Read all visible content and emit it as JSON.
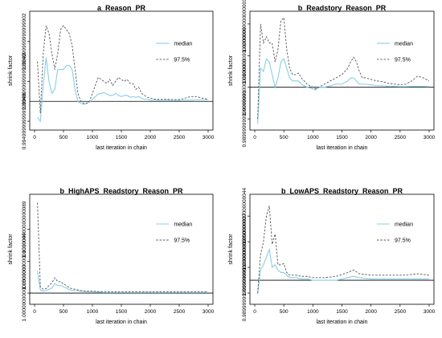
{
  "chart_data": [
    {
      "type": "line",
      "title": "a_Reason_PR",
      "xlabel": "last iteration in chain",
      "ylabel": "shrink factor",
      "xlim": [
        0,
        3000
      ],
      "ylim": [
        0.994,
        1.021
      ],
      "xticks": [
        0,
        500,
        1000,
        1500,
        2000,
        2500,
        3000
      ],
      "yticks": [
        0.995,
        1.005,
        1.015
      ],
      "reference_line": 1.0,
      "legend_position": "top-right",
      "series": [
        {
          "name": "median",
          "color": "#87CEEB",
          "dash": "solid",
          "x": [
            50,
            100,
            150,
            200,
            250,
            300,
            350,
            400,
            450,
            500,
            550,
            600,
            650,
            700,
            750,
            800,
            850,
            900,
            950,
            1000,
            1050,
            1100,
            1150,
            1200,
            1250,
            1300,
            1350,
            1400,
            1450,
            1500,
            1550,
            1600,
            1650,
            1700,
            1750,
            1800,
            1850,
            1900,
            1950,
            2000,
            2100,
            2200,
            2300,
            2400,
            2500,
            2600,
            2700,
            2800,
            2900,
            3000
          ],
          "values": [
            0.996,
            0.995,
            1.004,
            1.011,
            1.005,
            1.002,
            1.003,
            1.008,
            1.008,
            1.008,
            1.009,
            1.009,
            1.008,
            1.003,
            1.0,
            0.9995,
            0.9992,
            0.9995,
            0.9998,
            1.0005,
            1.0012,
            1.0018,
            1.002,
            1.0022,
            1.0018,
            1.0015,
            1.0015,
            1.002,
            1.0015,
            1.0012,
            1.0015,
            1.0015,
            1.001,
            1.0012,
            1.001,
            1.0012,
            1.0008,
            1.0005,
            1.0005,
            1.0003,
            1.0003,
            1.0002,
            1.0003,
            1.0002,
            1.0002,
            1.0003,
            1.0003,
            1.0004,
            1.0004,
            1.0004
          ]
        },
        {
          "name": "97.5%",
          "color": "#555555",
          "dash": "dashed",
          "x": [
            50,
            100,
            150,
            200,
            250,
            300,
            350,
            400,
            450,
            500,
            550,
            600,
            650,
            700,
            750,
            800,
            850,
            900,
            950,
            1000,
            1050,
            1100,
            1150,
            1200,
            1250,
            1300,
            1350,
            1400,
            1450,
            1500,
            1550,
            1600,
            1650,
            1700,
            1750,
            1800,
            1850,
            1900,
            1950,
            2000,
            2100,
            2200,
            2300,
            2400,
            2500,
            2600,
            2700,
            2800,
            2900,
            3000
          ],
          "values": [
            1.01,
            0.997,
            1.012,
            1.019,
            1.017,
            1.012,
            1.008,
            1.012,
            1.018,
            1.019,
            1.018,
            1.017,
            1.014,
            1.008,
            1.002,
            1.0,
            0.9995,
            0.9995,
            1.0,
            1.002,
            1.004,
            1.006,
            1.0055,
            1.005,
            1.0045,
            1.0055,
            1.004,
            1.005,
            1.006,
            1.0055,
            1.005,
            1.0055,
            1.0045,
            1.0045,
            1.003,
            1.0035,
            1.002,
            1.0015,
            1.001,
            1.0008,
            1.0005,
            1.0005,
            1.0005,
            1.0004,
            1.0004,
            1.0008,
            1.0012,
            1.0012,
            1.0008,
            1.0005
          ]
        }
      ]
    },
    {
      "type": "line",
      "title": "b_Readstory_Reason_PR",
      "xlabel": "last iteration in chain",
      "ylabel": "shrink factor",
      "xlim": [
        0,
        3000
      ],
      "ylim": [
        0.988,
        1.022
      ],
      "xticks": [
        0,
        500,
        1000,
        1500,
        2000,
        2500,
        3000
      ],
      "yticks": [
        0.99,
        1.0,
        1.01,
        1.02
      ],
      "reference_line": 1.0,
      "legend_position": "top-right",
      "series": [
        {
          "name": "median",
          "color": "#87CEEB",
          "dash": "solid",
          "x": [
            50,
            100,
            150,
            200,
            250,
            300,
            350,
            400,
            450,
            500,
            550,
            600,
            650,
            700,
            750,
            800,
            900,
            1000,
            1050,
            1100,
            1200,
            1300,
            1400,
            1500,
            1600,
            1650,
            1700,
            1750,
            1800,
            1850,
            1900,
            2000,
            2100,
            2200,
            2300,
            2400,
            2500,
            2600,
            2700,
            2800,
            2900,
            3000
          ],
          "values": [
            0.9885,
            1.006,
            1.005,
            1.009,
            1.008,
            1.004,
            1.0,
            1.003,
            1.008,
            1.009,
            1.006,
            1.003,
            1.002,
            1.002,
            1.002,
            1.001,
            1.0,
            0.9995,
            0.9992,
            1.0,
            1.0,
            1.0005,
            1.001,
            1.001,
            1.002,
            1.003,
            1.003,
            1.002,
            1.001,
            1.001,
            1.001,
            1.0008,
            1.0005,
            1.0005,
            1.0003,
            1.0003,
            1.0002,
            1.0002,
            1.0003,
            1.0003,
            1.0003,
            1.0002
          ]
        },
        {
          "name": "97.5%",
          "color": "#555555",
          "dash": "dashed",
          "x": [
            50,
            100,
            150,
            200,
            250,
            300,
            350,
            400,
            450,
            500,
            550,
            600,
            650,
            700,
            750,
            800,
            900,
            1000,
            1050,
            1100,
            1200,
            1300,
            1400,
            1500,
            1600,
            1650,
            1700,
            1750,
            1800,
            1850,
            1900,
            2000,
            2100,
            2200,
            2300,
            2400,
            2500,
            2600,
            2700,
            2800,
            2900,
            3000
          ],
          "values": [
            0.99,
            1.02,
            1.014,
            1.016,
            1.014,
            1.014,
            1.008,
            1.012,
            1.021,
            1.022,
            1.012,
            1.006,
            1.004,
            1.004,
            1.0045,
            1.003,
            1.001,
            1.0,
            0.9995,
            1.0,
            1.001,
            1.002,
            1.003,
            1.004,
            1.006,
            1.008,
            1.0095,
            1.008,
            1.005,
            1.003,
            1.003,
            1.0025,
            1.002,
            1.0018,
            1.0012,
            1.001,
            1.0008,
            1.001,
            1.002,
            1.0035,
            1.003,
            1.002
          ]
        }
      ]
    },
    {
      "type": "line",
      "title": "b_HighAPS_Readstory_Reason_PR",
      "xlabel": "last iteration in chain",
      "ylabel": "shrink factor",
      "xlim": [
        0,
        3000
      ],
      "ylim": [
        0.99,
        1.145
      ],
      "xticks": [
        0,
        500,
        1000,
        1500,
        2000,
        2500,
        3000
      ],
      "yticks": [
        1.0,
        1.05,
        1.1
      ],
      "reference_line": 1.0,
      "legend_position": "top-right",
      "series": [
        {
          "name": "median",
          "color": "#87CEEB",
          "dash": "solid",
          "x": [
            50,
            100,
            150,
            200,
            250,
            300,
            350,
            400,
            450,
            500,
            550,
            600,
            700,
            800,
            900,
            1000,
            1200,
            1400,
            1600,
            1800,
            2000,
            2200,
            2400,
            2600,
            2800,
            3000
          ],
          "values": [
            1.035,
            1.005,
            1.003,
            1.004,
            1.006,
            1.008,
            1.015,
            1.012,
            1.012,
            1.01,
            1.008,
            1.005,
            1.004,
            1.003,
            1.002,
            1.002,
            1.001,
            1.001,
            1.001,
            1.001,
            1.001,
            1.001,
            1.001,
            1.001,
            1.001,
            1.001
          ]
        },
        {
          "name": "97.5%",
          "color": "#555555",
          "dash": "dashed",
          "x": [
            50,
            100,
            150,
            200,
            250,
            300,
            350,
            400,
            450,
            500,
            550,
            600,
            700,
            800,
            900,
            1000,
            1200,
            1400,
            1600,
            1800,
            2000,
            2200,
            2400,
            2600,
            2800,
            3000
          ],
          "values": [
            1.142,
            1.01,
            1.006,
            1.007,
            1.012,
            1.016,
            1.024,
            1.018,
            1.018,
            1.014,
            1.012,
            1.008,
            1.006,
            1.004,
            1.003,
            1.003,
            1.002,
            1.002,
            1.002,
            1.002,
            1.002,
            1.002,
            1.002,
            1.002,
            1.002,
            1.002
          ]
        }
      ]
    },
    {
      "type": "line",
      "title": "b_LowAPS_Readstory_Reason_PR",
      "xlabel": "last iteration in chain",
      "ylabel": "shrink factor",
      "xlim": [
        0,
        3000
      ],
      "ylim": [
        0.985,
        1.062
      ],
      "xticks": [
        0,
        500,
        1000,
        1500,
        2000,
        2500,
        3000
      ],
      "yticks": [
        0.99,
        1.01,
        1.03,
        1.05
      ],
      "reference_line": 1.0,
      "legend_position": "top-right",
      "series": [
        {
          "name": "median",
          "color": "#87CEEB",
          "dash": "solid",
          "x": [
            50,
            100,
            150,
            200,
            250,
            300,
            350,
            400,
            450,
            500,
            550,
            600,
            700,
            800,
            900,
            1000,
            1200,
            1400,
            1600,
            1700,
            1800,
            2000,
            2200,
            2400,
            2600,
            2800,
            3000
          ],
          "values": [
            0.989,
            1.008,
            1.012,
            1.018,
            1.024,
            1.01,
            1.012,
            1.008,
            1.006,
            1.006,
            1.004,
            1.002,
            1.002,
            1.001,
            1.001,
            1.0,
            1.0,
            1.0,
            1.002,
            1.003,
            1.002,
            1.001,
            1.001,
            1.001,
            1.001,
            1.001,
            1.001
          ]
        },
        {
          "name": "97.5%",
          "color": "#555555",
          "dash": "dashed",
          "x": [
            50,
            100,
            150,
            200,
            250,
            300,
            350,
            400,
            450,
            500,
            550,
            600,
            700,
            800,
            900,
            1000,
            1200,
            1400,
            1600,
            1700,
            1800,
            2000,
            2200,
            2400,
            2600,
            2800,
            3000
          ],
          "values": [
            0.99,
            1.02,
            1.03,
            1.05,
            1.058,
            1.028,
            1.036,
            1.012,
            1.012,
            1.013,
            1.006,
            1.004,
            1.004,
            1.003,
            1.003,
            1.002,
            1.002,
            1.003,
            1.006,
            1.008,
            1.005,
            1.004,
            1.004,
            1.004,
            1.004,
            1.005,
            1.004
          ]
        }
      ]
    }
  ]
}
